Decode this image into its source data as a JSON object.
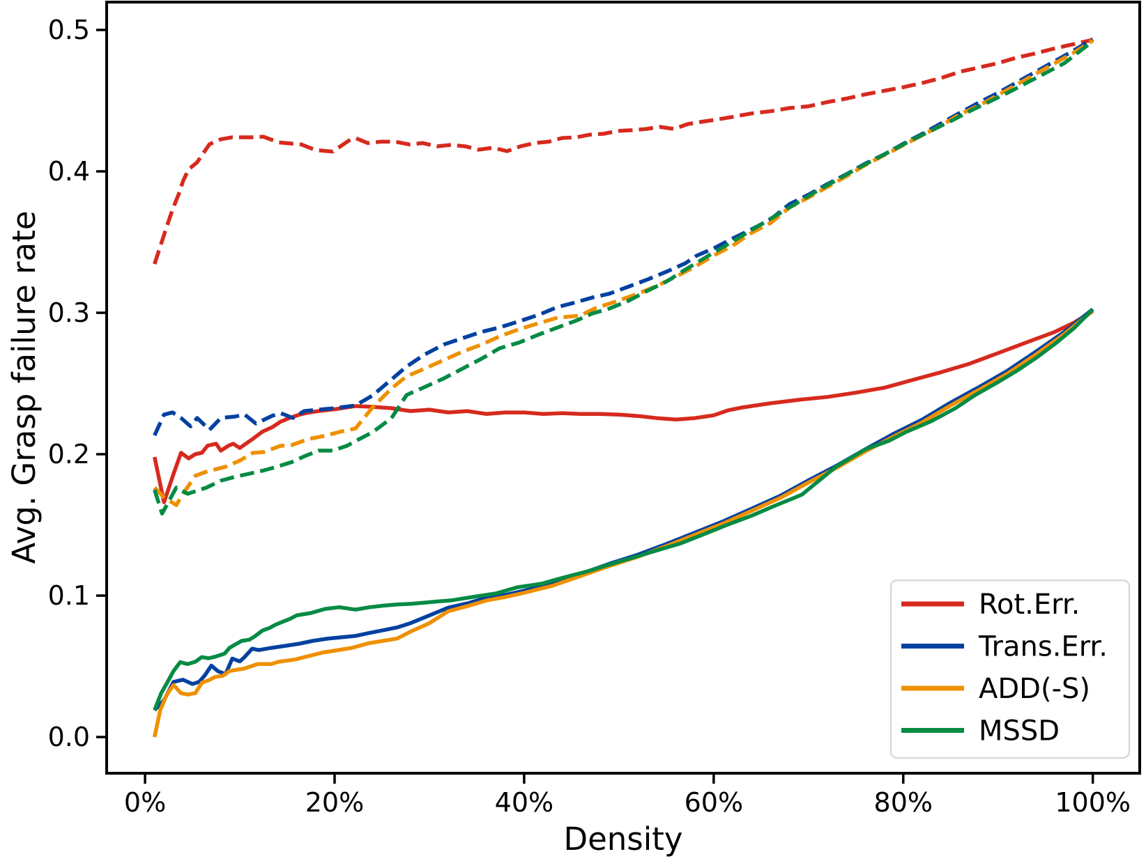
{
  "chart_data": {
    "type": "line",
    "title": "",
    "xlabel": "Density",
    "ylabel": "Avg. Grasp failure rate",
    "xlim": [
      -4.05,
      104.95
    ],
    "ylim": [
      -0.0256,
      0.5197
    ],
    "grid": false,
    "x_ticks": {
      "values": [
        0,
        20,
        40,
        60,
        80,
        100
      ],
      "labels": [
        "0%",
        "20%",
        "40%",
        "60%",
        "80%",
        "100%"
      ]
    },
    "y_ticks": {
      "values": [
        0.0,
        0.1,
        0.2,
        0.3,
        0.4,
        0.5
      ],
      "labels": [
        "0.0",
        "0.1",
        "0.2",
        "0.3",
        "0.4",
        "0.5"
      ]
    },
    "colors": {
      "red": "#d62a1e",
      "blue": "#0341a0",
      "orange": "#ee9000",
      "green": "#068b44"
    },
    "legend": {
      "position": "lower right",
      "entries": [
        {
          "label": "Rot.Err.",
          "color": "#d62a1e"
        },
        {
          "label": "Trans.Err.",
          "color": "#0341a0"
        },
        {
          "label": "ADD(-S)",
          "color": "#ee9000"
        },
        {
          "label": "MSSD",
          "color": "#068b44"
        }
      ]
    },
    "series": [
      {
        "name": "Rot.Err. (solid)",
        "metric": "Rot.Err.",
        "color": "#d62a1e",
        "style": "solid",
        "x": [
          1,
          2,
          3,
          3.8,
          4.6,
          5.3,
          6,
          6.6,
          7.5,
          8,
          8.8,
          9.3,
          10,
          11.4,
          12.4,
          13.4,
          14.3,
          15.4,
          16.3,
          17.3,
          18.3,
          20.2,
          22.2,
          24,
          26,
          28,
          30,
          32,
          34,
          36,
          38,
          40,
          42,
          44,
          46,
          48,
          50,
          52,
          54,
          56,
          58,
          60,
          61.5,
          63,
          66,
          69,
          72,
          75,
          78,
          81,
          84,
          87,
          90,
          93,
          96,
          98,
          100
        ],
        "y": [
          0.198,
          0.166,
          0.186,
          0.201,
          0.197,
          0.2,
          0.201,
          0.206,
          0.2074,
          0.2025,
          0.206,
          0.2074,
          0.2044,
          0.211,
          0.216,
          0.219,
          0.223,
          0.226,
          0.228,
          0.2295,
          0.2305,
          0.232,
          0.234,
          0.2335,
          0.2325,
          0.2305,
          0.2315,
          0.2295,
          0.2305,
          0.2285,
          0.2295,
          0.2295,
          0.2285,
          0.229,
          0.2285,
          0.2285,
          0.228,
          0.227,
          0.2255,
          0.2245,
          0.2255,
          0.2275,
          0.231,
          0.233,
          0.236,
          0.2385,
          0.2405,
          0.2435,
          0.247,
          0.2525,
          0.258,
          0.264,
          0.2715,
          0.279,
          0.2865,
          0.293,
          0.301
        ]
      },
      {
        "name": "Rot.Err. (dashed)",
        "metric": "Rot.Err.",
        "color": "#d62a1e",
        "style": "dashed",
        "x": [
          1,
          2.1,
          2.9,
          3.6,
          4,
          4.6,
          5.5,
          6.8,
          8,
          9.2,
          11.2,
          12.5,
          14.1,
          16.5,
          18,
          19.8,
          21.5,
          22.2,
          23.5,
          24.9,
          26.4,
          27.9,
          29.3,
          30.8,
          32.3,
          33.8,
          35.2,
          36.7,
          38.2,
          39.6,
          41.1,
          42.6,
          44,
          45.5,
          47,
          48.4,
          49.9,
          51.4,
          52.9,
          54.3,
          55.8,
          57.3,
          58.7,
          60.2,
          62,
          64,
          66,
          68,
          70,
          72,
          74,
          76,
          78,
          80,
          82,
          84,
          86,
          88,
          90,
          92,
          94,
          96,
          98,
          100
        ],
        "y": [
          0.3345,
          0.357,
          0.373,
          0.3847,
          0.393,
          0.4015,
          0.4064,
          0.4192,
          0.4227,
          0.4241,
          0.4241,
          0.4245,
          0.4205,
          0.419,
          0.415,
          0.414,
          0.4217,
          0.4236,
          0.42,
          0.421,
          0.421,
          0.419,
          0.42,
          0.4177,
          0.4187,
          0.4177,
          0.4153,
          0.4167,
          0.4143,
          0.4177,
          0.42,
          0.421,
          0.4236,
          0.4241,
          0.426,
          0.4266,
          0.4286,
          0.4291,
          0.43,
          0.4315,
          0.43,
          0.4335,
          0.435,
          0.4365,
          0.4385,
          0.441,
          0.4425,
          0.4448,
          0.446,
          0.449,
          0.4515,
          0.4545,
          0.457,
          0.4595,
          0.4625,
          0.466,
          0.4705,
          0.4735,
          0.4765,
          0.4805,
          0.4835,
          0.487,
          0.49,
          0.493
        ]
      },
      {
        "name": "Trans.Err. (solid)",
        "metric": "Trans.Err.",
        "color": "#0341a0",
        "style": "solid",
        "x": [
          1,
          2,
          3,
          4,
          5,
          5.7,
          6.3,
          7,
          7.7,
          8.5,
          9.2,
          10,
          10.5,
          11.3,
          12,
          13.3,
          14.8,
          16.3,
          17.7,
          19.2,
          20.7,
          22.2,
          23.6,
          25.1,
          26.6,
          28,
          30,
          32,
          34,
          36,
          38,
          40,
          43,
          46,
          49,
          52,
          55,
          58,
          61,
          64,
          67,
          70,
          73,
          76,
          79,
          82,
          85,
          88,
          91,
          94,
          97,
          100
        ],
        "y": [
          0.019,
          0.026,
          0.039,
          0.0405,
          0.0375,
          0.039,
          0.0435,
          0.0505,
          0.0465,
          0.0445,
          0.0555,
          0.0535,
          0.0565,
          0.0625,
          0.0615,
          0.063,
          0.0645,
          0.066,
          0.068,
          0.0695,
          0.0705,
          0.0715,
          0.0735,
          0.0755,
          0.0775,
          0.0805,
          0.086,
          0.0915,
          0.0945,
          0.0985,
          0.1005,
          0.1035,
          0.1085,
          0.1155,
          0.1225,
          0.129,
          0.1365,
          0.1445,
          0.1525,
          0.1615,
          0.1705,
          0.1815,
          0.192,
          0.2035,
          0.2145,
          0.2245,
          0.2365,
          0.2475,
          0.259,
          0.2725,
          0.2865,
          0.3025
        ]
      },
      {
        "name": "Trans.Err. (dashed)",
        "metric": "Trans.Err.",
        "color": "#0341a0",
        "style": "dashed",
        "x": [
          1,
          2,
          2.9,
          3.8,
          4.8,
          5.5,
          6.8,
          8,
          9.5,
          10.5,
          11.7,
          13.4,
          14.3,
          15.6,
          16.8,
          18.3,
          20,
          22.2,
          24,
          25.5,
          27.6,
          29.5,
          31.5,
          33.5,
          35.5,
          37.4,
          39.5,
          41.5,
          43.5,
          45.5,
          47.2,
          49,
          51,
          53,
          55,
          57,
          58.2,
          60,
          62,
          64,
          66,
          68,
          70,
          72,
          74,
          76,
          78,
          80,
          82,
          84,
          86,
          87.6,
          90,
          92,
          94,
          96,
          98,
          100
        ],
        "y": [
          0.2133,
          0.228,
          0.2295,
          0.2256,
          0.2197,
          0.2256,
          0.2172,
          0.2256,
          0.2266,
          0.2281,
          0.2217,
          0.2271,
          0.229,
          0.2256,
          0.2305,
          0.2315,
          0.2325,
          0.2345,
          0.2415,
          0.25,
          0.262,
          0.2705,
          0.2775,
          0.282,
          0.2865,
          0.2896,
          0.294,
          0.2985,
          0.304,
          0.3075,
          0.3108,
          0.3135,
          0.3185,
          0.3235,
          0.329,
          0.335,
          0.3404,
          0.3455,
          0.3525,
          0.359,
          0.366,
          0.3768,
          0.3835,
          0.391,
          0.398,
          0.4055,
          0.412,
          0.4195,
          0.4265,
          0.434,
          0.4415,
          0.4473,
          0.4555,
          0.463,
          0.4705,
          0.478,
          0.4855,
          0.4935
        ]
      },
      {
        "name": "ADD(-S) (solid)",
        "metric": "ADD(-S)",
        "color": "#ee9000",
        "style": "solid",
        "x": [
          1,
          1.6,
          2.3,
          3,
          3.8,
          4.5,
          5.3,
          6,
          6.7,
          7.4,
          8.2,
          8.9,
          9.6,
          10.4,
          11.9,
          13.3,
          14.1,
          15.8,
          17.3,
          18.8,
          20.3,
          21.8,
          23.6,
          25.1,
          26.6,
          28,
          30,
          32,
          34,
          36,
          38,
          40,
          43,
          46,
          49,
          52,
          55,
          58,
          61,
          64,
          67,
          70,
          73,
          76,
          79,
          82,
          85,
          88,
          91,
          94,
          97,
          100
        ],
        "y": [
          0,
          0.019,
          0.03,
          0.0368,
          0.031,
          0.03,
          0.031,
          0.0384,
          0.0401,
          0.0425,
          0.0433,
          0.0466,
          0.0475,
          0.0483,
          0.0516,
          0.0516,
          0.0532,
          0.0548,
          0.0573,
          0.0598,
          0.0614,
          0.063,
          0.0663,
          0.068,
          0.0696,
          0.0745,
          0.0805,
          0.089,
          0.0925,
          0.0965,
          0.099,
          0.102,
          0.107,
          0.114,
          0.121,
          0.1275,
          0.135,
          0.143,
          0.151,
          0.16,
          0.169,
          0.18,
          0.1905,
          0.202,
          0.2125,
          0.2225,
          0.2345,
          0.2455,
          0.257,
          0.2705,
          0.285,
          0.3015
        ]
      },
      {
        "name": "ADD(-S) (dashed)",
        "metric": "ADD(-S)",
        "color": "#ee9000",
        "style": "dashed",
        "x": [
          1,
          2,
          3.3,
          4,
          5.3,
          6.5,
          8.5,
          10,
          11.4,
          12.5,
          14.3,
          15.5,
          17.3,
          19,
          20.5,
          22.2,
          24,
          26,
          27.6,
          29.5,
          31.5,
          33.5,
          35.5,
          37.4,
          39.5,
          41.5,
          43.5,
          45.9,
          47.6,
          49.6,
          52,
          54,
          56,
          58,
          60,
          62,
          64,
          66,
          68,
          70,
          72,
          74,
          76,
          78,
          80,
          82,
          84,
          86,
          88,
          90,
          92,
          94,
          96,
          98,
          100
        ],
        "y": [
          0.1764,
          0.1695,
          0.164,
          0.172,
          0.1847,
          0.1877,
          0.1911,
          0.1955,
          0.201,
          0.2015,
          0.2059,
          0.2065,
          0.2108,
          0.213,
          0.2157,
          0.2182,
          0.233,
          0.2465,
          0.2551,
          0.2605,
          0.2665,
          0.2725,
          0.2775,
          0.2833,
          0.2885,
          0.2925,
          0.2965,
          0.298,
          0.3035,
          0.3078,
          0.3135,
          0.319,
          0.3255,
          0.3325,
          0.3405,
          0.3475,
          0.3565,
          0.3635,
          0.3745,
          0.3815,
          0.389,
          0.3965,
          0.4045,
          0.4115,
          0.4185,
          0.4255,
          0.4325,
          0.4405,
          0.4465,
          0.454,
          0.4615,
          0.469,
          0.4765,
          0.484,
          0.4925
        ]
      },
      {
        "name": "MSSD (solid)",
        "metric": "MSSD",
        "color": "#068b44",
        "style": "solid",
        "x": [
          1,
          1.7,
          2.3,
          3,
          3.7,
          4.5,
          5.3,
          6,
          6.7,
          7.4,
          8.4,
          8.9,
          9.4,
          10.2,
          11,
          11.6,
          12.4,
          13.1,
          13.8,
          15.3,
          16,
          17.5,
          19,
          20.5,
          22.2,
          23.7,
          25.2,
          26.6,
          28.1,
          29.6,
          31,
          32.4,
          34.5,
          37,
          39.3,
          41.8,
          44,
          46.7,
          49,
          51.6,
          54,
          56.5,
          59,
          61.4,
          64,
          66.3,
          69.3,
          72.9,
          76,
          78.5,
          80.3,
          83,
          85.5,
          87.6,
          90,
          92,
          94,
          96,
          98,
          100
        ],
        "y": [
          0.019,
          0.031,
          0.038,
          0.0466,
          0.0529,
          0.0516,
          0.0532,
          0.0565,
          0.0557,
          0.0568,
          0.059,
          0.063,
          0.065,
          0.068,
          0.0688,
          0.0713,
          0.0754,
          0.077,
          0.0795,
          0.0836,
          0.086,
          0.0877,
          0.0906,
          0.0918,
          0.0901,
          0.0918,
          0.0929,
          0.0937,
          0.0942,
          0.0951,
          0.0959,
          0.0967,
          0.099,
          0.1015,
          0.1059,
          0.1084,
          0.1125,
          0.1172,
          0.122,
          0.1271,
          0.132,
          0.1369,
          0.1435,
          0.15,
          0.1565,
          0.1631,
          0.1714,
          0.1911,
          0.2035,
          0.2095,
          0.2157,
          0.2235,
          0.2325,
          0.2419,
          0.251,
          0.259,
          0.268,
          0.278,
          0.289,
          0.3025
        ]
      },
      {
        "name": "MSSD (dashed)",
        "metric": "MSSD",
        "color": "#068b44",
        "style": "dashed",
        "x": [
          1,
          1.8,
          3.3,
          4.5,
          6.5,
          8,
          9.5,
          11,
          12.5,
          13.9,
          15.5,
          16.8,
          18.3,
          19.8,
          21.3,
          22.5,
          24,
          26,
          27.6,
          29.5,
          31.5,
          33.5,
          35.5,
          37.4,
          39.5,
          41.5,
          43.5,
          45.5,
          47.2,
          49,
          51,
          53,
          55,
          57,
          59,
          61,
          63,
          65,
          67,
          69,
          71,
          73,
          75,
          77,
          79,
          81,
          83,
          85,
          87,
          89,
          91,
          93,
          95,
          97,
          100
        ],
        "y": [
          0.1749,
          0.158,
          0.1764,
          0.172,
          0.1764,
          0.1813,
          0.184,
          0.1862,
          0.1885,
          0.1911,
          0.1945,
          0.1985,
          0.2025,
          0.2025,
          0.2059,
          0.2103,
          0.2155,
          0.2255,
          0.2419,
          0.2475,
          0.2535,
          0.2605,
          0.2675,
          0.2749,
          0.279,
          0.2845,
          0.2895,
          0.2945,
          0.2995,
          0.303,
          0.3085,
          0.3155,
          0.322,
          0.3305,
          0.3385,
          0.3465,
          0.3545,
          0.3625,
          0.3705,
          0.3785,
          0.3865,
          0.394,
          0.4015,
          0.4085,
          0.4155,
          0.4225,
          0.429,
          0.4355,
          0.4425,
          0.449,
          0.4555,
          0.4625,
          0.4695,
          0.4765,
          0.492
        ]
      }
    ]
  }
}
